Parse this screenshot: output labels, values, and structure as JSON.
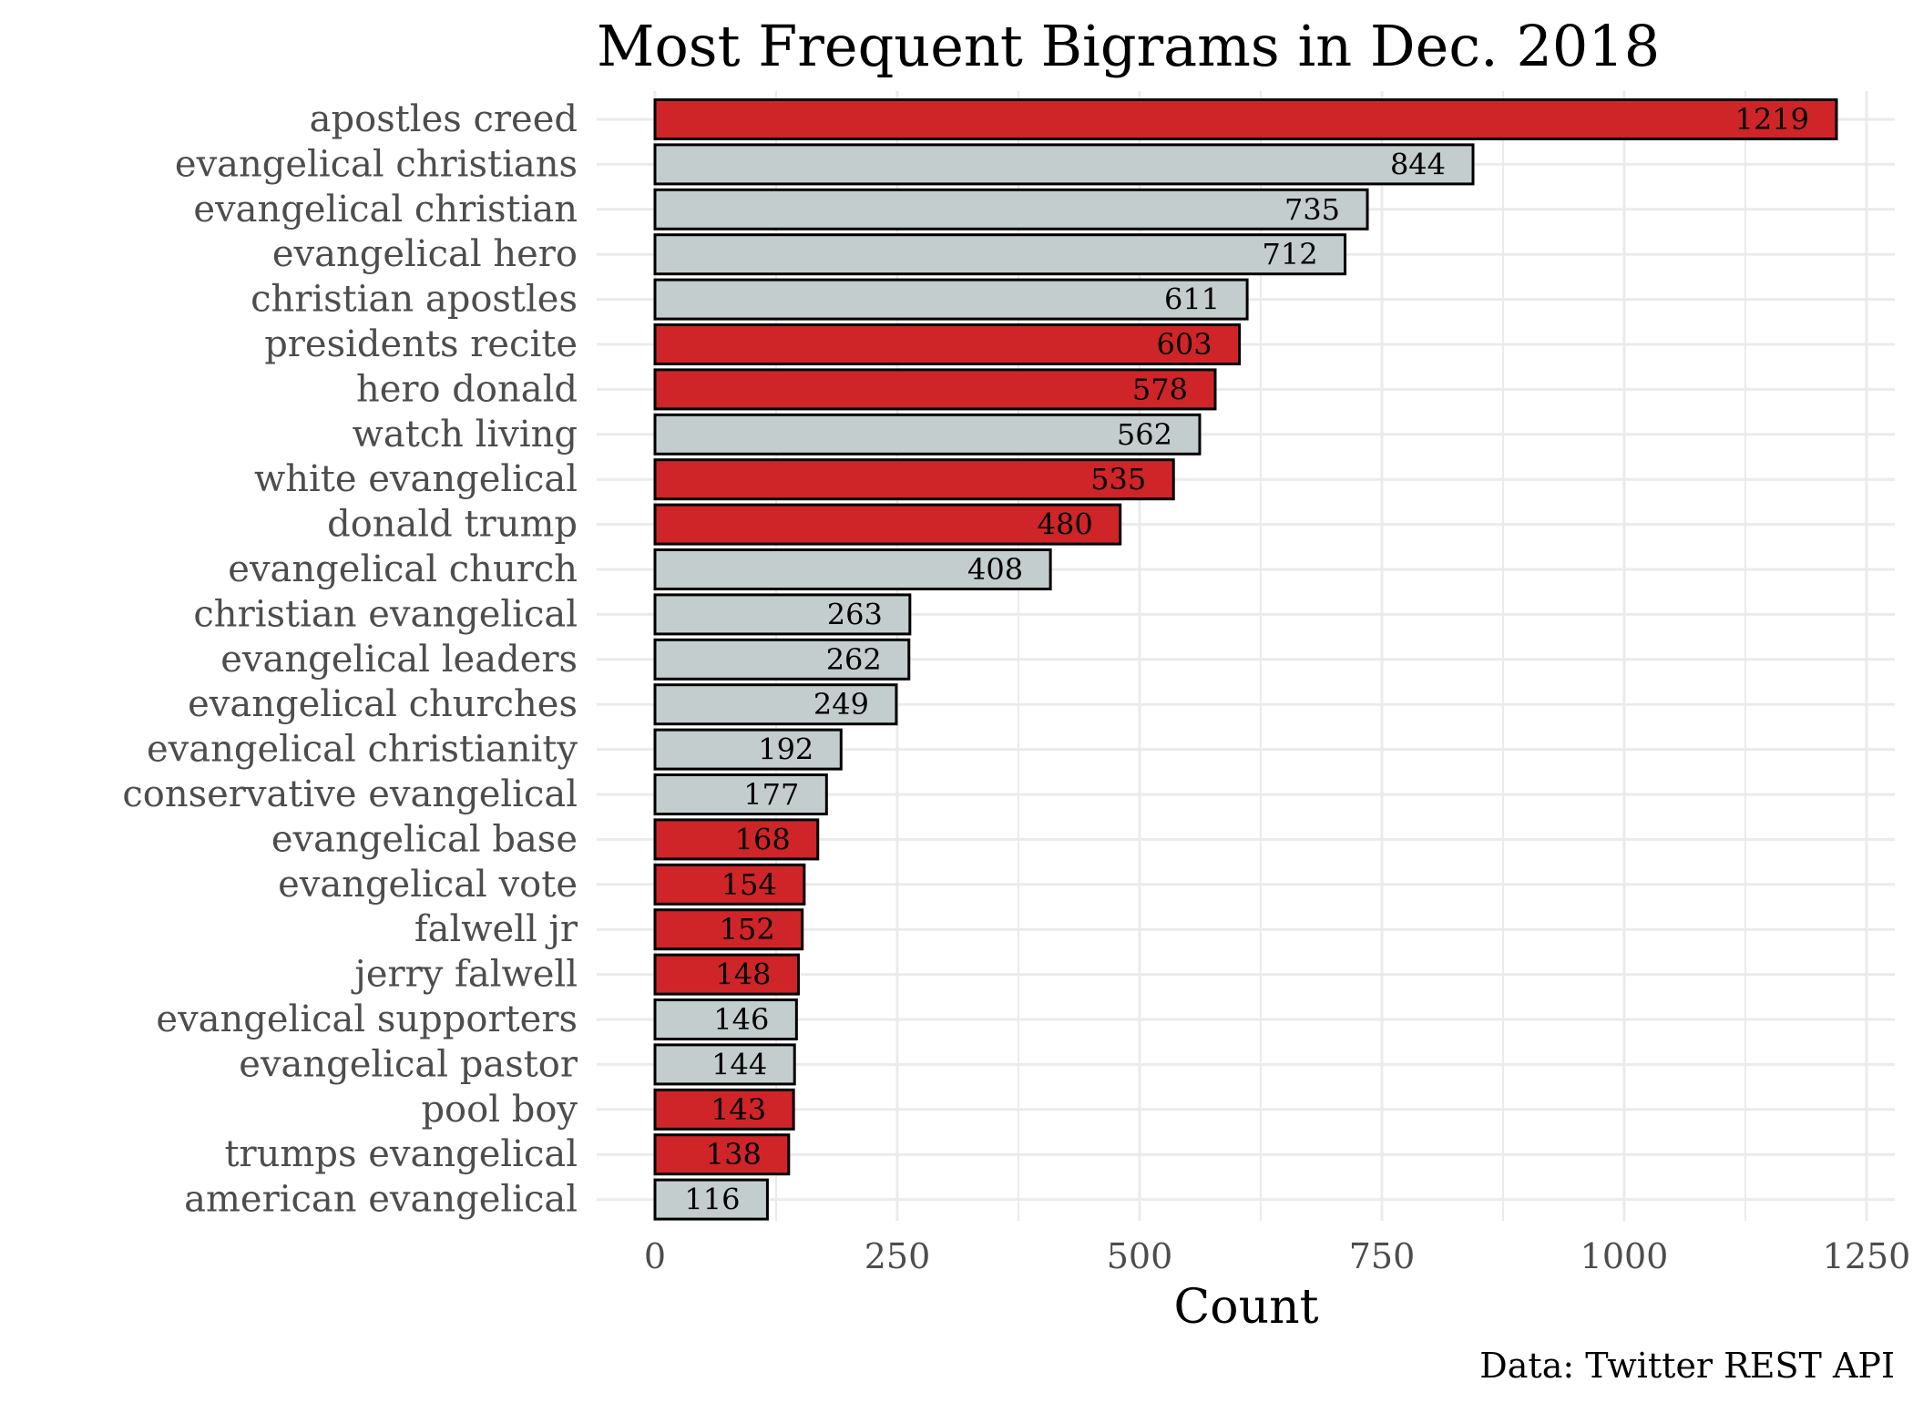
{
  "chart_data": {
    "type": "bar",
    "orientation": "horizontal",
    "title": "Most Frequent Bigrams in Dec. 2018",
    "xlabel": "Count",
    "ylabel": "",
    "caption": "Data: Twitter REST API",
    "xlim": [
      0,
      1250
    ],
    "xticks": [
      0,
      250,
      500,
      750,
      1000,
      1250
    ],
    "grid": true,
    "colors": {
      "highlight": "#cf2528",
      "default": "#c3cdcd",
      "outline": "#000000",
      "grid": "#ebebeb"
    },
    "bars": [
      {
        "label": "apostles creed",
        "value": 1219,
        "highlight": true
      },
      {
        "label": "evangelical christians",
        "value": 844,
        "highlight": false
      },
      {
        "label": "evangelical christian",
        "value": 735,
        "highlight": false
      },
      {
        "label": "evangelical hero",
        "value": 712,
        "highlight": false
      },
      {
        "label": "christian apostles",
        "value": 611,
        "highlight": false
      },
      {
        "label": "presidents recite",
        "value": 603,
        "highlight": true
      },
      {
        "label": "hero donald",
        "value": 578,
        "highlight": true
      },
      {
        "label": "watch living",
        "value": 562,
        "highlight": false
      },
      {
        "label": "white evangelical",
        "value": 535,
        "highlight": true
      },
      {
        "label": "donald trump",
        "value": 480,
        "highlight": true
      },
      {
        "label": "evangelical church",
        "value": 408,
        "highlight": false
      },
      {
        "label": "christian evangelical",
        "value": 263,
        "highlight": false
      },
      {
        "label": "evangelical leaders",
        "value": 262,
        "highlight": false
      },
      {
        "label": "evangelical churches",
        "value": 249,
        "highlight": false
      },
      {
        "label": "evangelical christianity",
        "value": 192,
        "highlight": false
      },
      {
        "label": "conservative evangelical",
        "value": 177,
        "highlight": false
      },
      {
        "label": "evangelical base",
        "value": 168,
        "highlight": true
      },
      {
        "label": "evangelical vote",
        "value": 154,
        "highlight": true
      },
      {
        "label": "falwell jr",
        "value": 152,
        "highlight": true
      },
      {
        "label": "jerry falwell",
        "value": 148,
        "highlight": true
      },
      {
        "label": "evangelical supporters",
        "value": 146,
        "highlight": false
      },
      {
        "label": "evangelical pastor",
        "value": 144,
        "highlight": false
      },
      {
        "label": "pool boy",
        "value": 143,
        "highlight": true
      },
      {
        "label": "trumps evangelical",
        "value": 138,
        "highlight": true
      },
      {
        "label": "american evangelical",
        "value": 116,
        "highlight": false
      }
    ]
  }
}
